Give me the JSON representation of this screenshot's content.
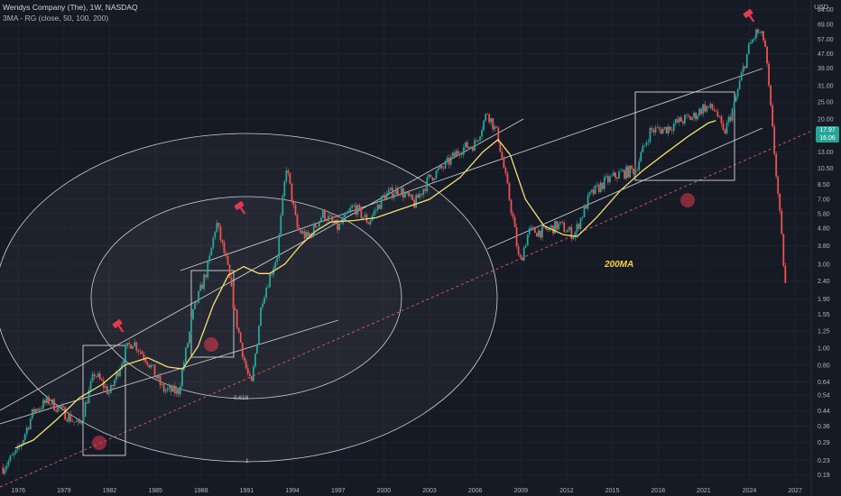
{
  "legend": {
    "symbol": "Wendys Company (The), 1W, NASDAQ",
    "indicator": "3MA - RG (close, 50, 100, 200)"
  },
  "axis": {
    "currency": "USD",
    "y_ticks": [
      "84.00",
      "69.00",
      "57.00",
      "47.00",
      "39.00",
      "31.00",
      "25.00",
      "20.00",
      "13.00",
      "10.50",
      "8.50",
      "7.00",
      "5.80",
      "4.80",
      "3.80",
      "3.00",
      "2.40",
      "1.90",
      "1.55",
      "1.25",
      "1.00",
      "0.80",
      "0.64",
      "0.54",
      "0.44",
      "0.36",
      "0.29",
      "0.23",
      "0.19"
    ],
    "x_ticks": [
      "1976",
      "1979",
      "1982",
      "1985",
      "1988",
      "1991",
      "1994",
      "1997",
      "2000",
      "2003",
      "2006",
      "2009",
      "2012",
      "2015",
      "2018",
      "2021",
      "2024",
      "2027"
    ]
  },
  "price_tag": {
    "line1": "17.97",
    "line2": "16.06",
    "color": "#26a69a"
  },
  "annotations": {
    "ma_label": "200MA",
    "fib_inner": "0.618",
    "fib_outer": "1"
  },
  "colors": {
    "background": "#161a25",
    "bull": "#26a69a",
    "bear": "#ef5350",
    "ma": "#f5e06e",
    "channel": "#c8c8c8",
    "dotted_trend": "#e05a5a",
    "marker": "#e53950"
  },
  "chart_data": {
    "type": "candlestick",
    "title": "Wendys Company (The), 1W, NASDAQ",
    "y_scale": "log",
    "ylim": [
      0.17,
      95
    ],
    "xlim": [
      1974.8,
      2028
    ],
    "series": [
      {
        "name": "price",
        "x": [
          1975.0,
          1976.0,
          1977.0,
          1978.0,
          1979.0,
          1980.0,
          1981.0,
          1982.0,
          1983.0,
          1983.5,
          1984.5,
          1985.5,
          1986.5,
          1987.5,
          1988.5,
          1989.0,
          1989.7,
          1990.3,
          1990.9,
          1991.3,
          1992.0,
          1993.0,
          1993.6,
          1994.3,
          1995.0,
          1996.0,
          1997.0,
          1998.0,
          1999.0,
          2000.0,
          2001.0,
          2002.0,
          2003.0,
          2004.0,
          2005.0,
          2006.0,
          2006.8,
          2007.5,
          2008.5,
          2008.9,
          2009.5,
          2010.5,
          2011.5,
          2012.5,
          2013.5,
          2014.5,
          2015.5,
          2016.5,
          2017.5,
          2018.5,
          2019.5,
          2020.3,
          2021.0,
          2021.8,
          2022.3,
          2023.0,
          2023.5,
          2024.0,
          2024.5,
          2025.0,
          2025.5,
          2026.0,
          2026.4
        ],
        "close": [
          0.21,
          0.26,
          0.44,
          0.5,
          0.43,
          0.36,
          0.72,
          0.55,
          0.95,
          1.1,
          0.85,
          0.58,
          0.56,
          1.6,
          3.0,
          5.2,
          3.0,
          1.45,
          0.8,
          0.6,
          1.9,
          3.4,
          10.8,
          4.8,
          4.2,
          5.8,
          4.8,
          6.4,
          5.2,
          7.3,
          8.0,
          6.6,
          9.3,
          10.8,
          13.5,
          14.5,
          22.0,
          16.0,
          5.3,
          3.0,
          4.6,
          4.6,
          5.0,
          4.4,
          7.3,
          8.8,
          9.8,
          10.3,
          17.2,
          17.6,
          19.6,
          20.5,
          23.5,
          22.5,
          16.3,
          24.0,
          36.0,
          52.0,
          63.0,
          56.0,
          18.0,
          5.6,
          2.05
        ]
      },
      {
        "name": "200MA",
        "x": [
          1975.8,
          1977.0,
          1978.5,
          1980.0,
          1981.5,
          1983.0,
          1984.5,
          1985.8,
          1986.8,
          1987.8,
          1988.8,
          1989.8,
          1990.8,
          1991.8,
          1992.5,
          1993.5,
          1994.5,
          1995.5,
          1996.5,
          1998.0,
          1999.5,
          2001.0,
          2003.0,
          2005.0,
          2006.5,
          2007.5,
          2008.3,
          2009.3,
          2010.5,
          2011.8,
          2012.7,
          2014.0,
          2015.5,
          2017.0,
          2018.5,
          2020.0,
          2021.3,
          2021.8
        ],
        "values": [
          0.27,
          0.3,
          0.39,
          0.52,
          0.62,
          0.8,
          0.88,
          0.78,
          0.76,
          1.02,
          1.75,
          2.6,
          2.9,
          2.65,
          2.65,
          3.0,
          3.8,
          4.6,
          5.2,
          5.3,
          5.5,
          6.1,
          7.0,
          9.3,
          13.0,
          15.3,
          12.5,
          7.0,
          4.95,
          4.4,
          4.3,
          5.55,
          7.8,
          10.2,
          12.8,
          16.0,
          19.0,
          19.6
        ]
      }
    ]
  }
}
